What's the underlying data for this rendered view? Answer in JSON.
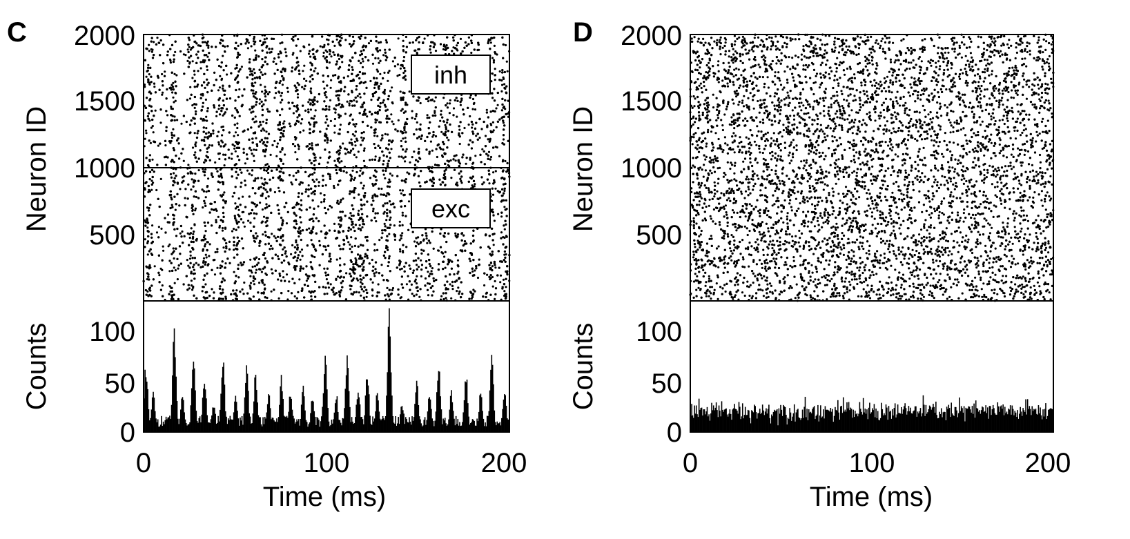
{
  "colors": {
    "marks": "#000000",
    "background": "#ffffff"
  },
  "chart_data": [
    {
      "panel": "C",
      "type": "scatter",
      "description_kind": "raster",
      "xlabel": "",
      "ylabel": "Neuron ID",
      "xlim": [
        0,
        200
      ],
      "ylim": [
        0,
        2000
      ],
      "yticks": [
        500,
        1000,
        1500,
        2000
      ],
      "yticklabels": [
        "500",
        "1000",
        "1500",
        "2000"
      ],
      "divider_y": 1000,
      "legend": [
        {
          "label": "inh",
          "y_center": 1650
        },
        {
          "label": "exc",
          "y_center": 700
        }
      ],
      "synchrony_times_ms": [
        3,
        16,
        27,
        34,
        43,
        51,
        60,
        66,
        75,
        84,
        92,
        100,
        107,
        114,
        120,
        127,
        133,
        142,
        150,
        157,
        165,
        172,
        180,
        190,
        197
      ],
      "approx_spike_count": 8000
    },
    {
      "panel": "C",
      "type": "bar",
      "description_kind": "histogram",
      "xlabel": "Time (ms)",
      "ylabel": "Counts",
      "xlim": [
        0,
        200
      ],
      "ylim": [
        0,
        125
      ],
      "xticks": [
        0,
        100,
        200
      ],
      "xticklabels": [
        "0",
        "100",
        "200"
      ],
      "yticks": [
        0,
        50,
        100
      ],
      "yticklabels": [
        "0",
        "50",
        "100"
      ],
      "bin_width_ms": 0.5,
      "baseline_count": 12,
      "peaks": [
        {
          "x": 1,
          "y": 68
        },
        {
          "x": 5,
          "y": 40
        },
        {
          "x": 16.5,
          "y": 101
        },
        {
          "x": 21,
          "y": 40
        },
        {
          "x": 27,
          "y": 80
        },
        {
          "x": 33,
          "y": 60
        },
        {
          "x": 38,
          "y": 30
        },
        {
          "x": 43,
          "y": 76
        },
        {
          "x": 50,
          "y": 35
        },
        {
          "x": 56,
          "y": 65
        },
        {
          "x": 61,
          "y": 60
        },
        {
          "x": 68,
          "y": 40
        },
        {
          "x": 75,
          "y": 55
        },
        {
          "x": 80,
          "y": 40
        },
        {
          "x": 87,
          "y": 45
        },
        {
          "x": 92,
          "y": 35
        },
        {
          "x": 99,
          "y": 80
        },
        {
          "x": 105,
          "y": 40
        },
        {
          "x": 111,
          "y": 78
        },
        {
          "x": 117,
          "y": 45
        },
        {
          "x": 122,
          "y": 60
        },
        {
          "x": 127.5,
          "y": 40
        },
        {
          "x": 134,
          "y": 123
        },
        {
          "x": 141,
          "y": 30
        },
        {
          "x": 149,
          "y": 50
        },
        {
          "x": 156,
          "y": 40
        },
        {
          "x": 161,
          "y": 70
        },
        {
          "x": 168,
          "y": 40
        },
        {
          "x": 176,
          "y": 60
        },
        {
          "x": 184,
          "y": 40
        },
        {
          "x": 190,
          "y": 75
        },
        {
          "x": 197,
          "y": 45
        }
      ]
    },
    {
      "panel": "D",
      "type": "scatter",
      "description_kind": "raster",
      "xlabel": "",
      "ylabel": "Neuron ID",
      "xlim": [
        0,
        200
      ],
      "ylim": [
        0,
        2000
      ],
      "yticks": [
        500,
        1000,
        1500,
        2000
      ],
      "yticklabels": [
        "500",
        "1000",
        "1500",
        "2000"
      ],
      "approx_spike_count": 8000
    },
    {
      "panel": "D",
      "type": "bar",
      "description_kind": "histogram",
      "xlabel": "Time (ms)",
      "ylabel": "Counts",
      "xlim": [
        0,
        200
      ],
      "ylim": [
        0,
        125
      ],
      "xticks": [
        0,
        100,
        200
      ],
      "xticklabels": [
        "0",
        "100",
        "200"
      ],
      "yticks": [
        0,
        50,
        100
      ],
      "yticklabels": [
        "0",
        "50",
        "100"
      ],
      "bin_width_ms": 0.5,
      "mean_count": 20,
      "max_count": 35
    }
  ]
}
